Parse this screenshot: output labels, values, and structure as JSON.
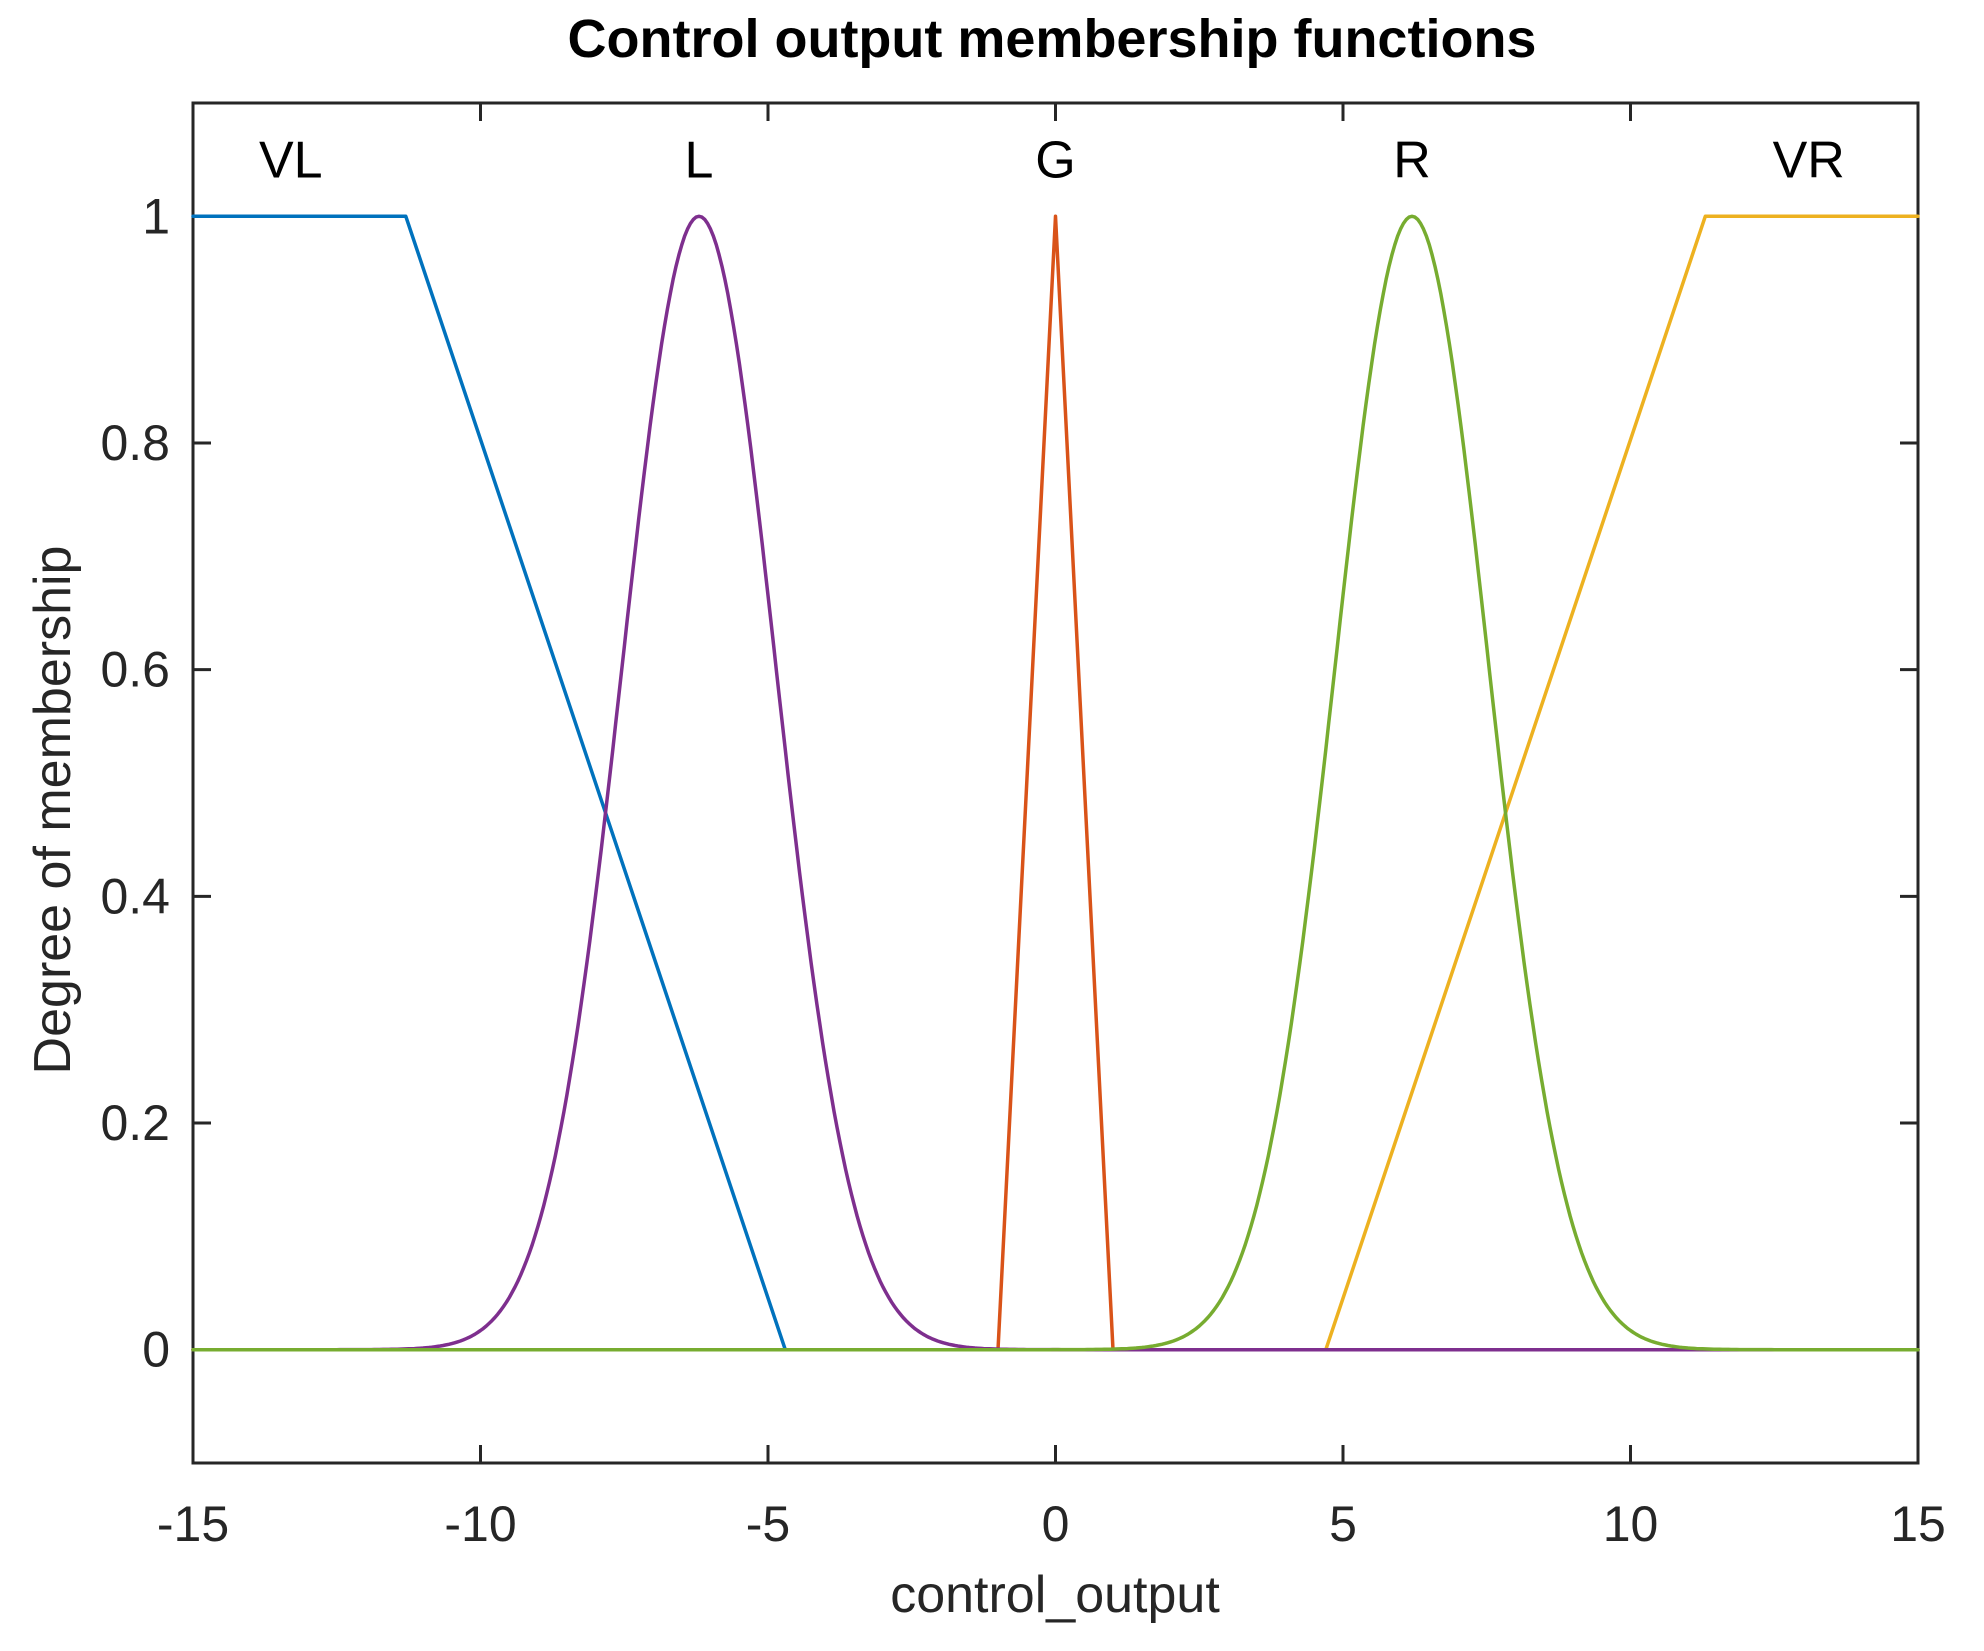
{
  "figure": {
    "background": "#ffffff",
    "axis_color": "#262626"
  },
  "chart_data": {
    "type": "line",
    "title": "Control output membership functions",
    "xlabel": "control_output",
    "ylabel": "Degree of membership",
    "xlim": [
      -15,
      15
    ],
    "ylim": [
      -0.1,
      1.1
    ],
    "xticks": [
      -15,
      -10,
      -5,
      0,
      5,
      10,
      15
    ],
    "xtick_labels": [
      "-15",
      "-10",
      "-5",
      "0",
      "5",
      "10",
      "15"
    ],
    "yticks": [
      0,
      0.2,
      0.4,
      0.6,
      0.8,
      1
    ],
    "ytick_labels": [
      "0",
      "0.2",
      "0.4",
      "0.6",
      "0.8",
      "1"
    ],
    "grid": false,
    "legend": false,
    "tick_direction": "in",
    "box": true,
    "series": [
      {
        "name": "VL",
        "label": "VL",
        "color": "#0072BD",
        "shape": "linear",
        "points": [
          [
            -15,
            1
          ],
          [
            -11.3,
            1
          ],
          [
            -4.7,
            0
          ],
          [
            15,
            0
          ]
        ],
        "description": "trapezoid: flat at 1 until -11.3, linear down to 0 at -4.7",
        "label_x": -13.3,
        "label_y": 1.05
      },
      {
        "name": "G",
        "label": "G",
        "color": "#D95319",
        "shape": "linear",
        "points": [
          [
            -15,
            0
          ],
          [
            -1,
            0
          ],
          [
            0,
            1
          ],
          [
            1,
            0
          ],
          [
            15,
            0
          ]
        ],
        "description": "triangle: base -1 to 1, peak at 0",
        "label_x": 0,
        "label_y": 1.05
      },
      {
        "name": "VR",
        "label": "VR",
        "color": "#EDB120",
        "shape": "linear",
        "points": [
          [
            -15,
            0
          ],
          [
            4.7,
            0
          ],
          [
            11.3,
            1
          ],
          [
            15,
            1
          ]
        ],
        "description": "trapezoid: 0 until 4.7, linear up to 1 at 11.3, flat to 15",
        "label_x": 13.1,
        "label_y": 1.05
      },
      {
        "name": "L",
        "label": "L",
        "color": "#7E2F8E",
        "shape": "gaussian",
        "center": -6.2,
        "sigma": 1.33,
        "peak": 1,
        "description": "gaussian bell centered at -6.2",
        "label_x": -6.2,
        "label_y": 1.05
      },
      {
        "name": "R",
        "label": "R",
        "color": "#77AC30",
        "shape": "gaussian",
        "center": 6.2,
        "sigma": 1.33,
        "peak": 1,
        "description": "gaussian bell centered at 6.2",
        "label_x": 6.2,
        "label_y": 1.05
      }
    ]
  }
}
